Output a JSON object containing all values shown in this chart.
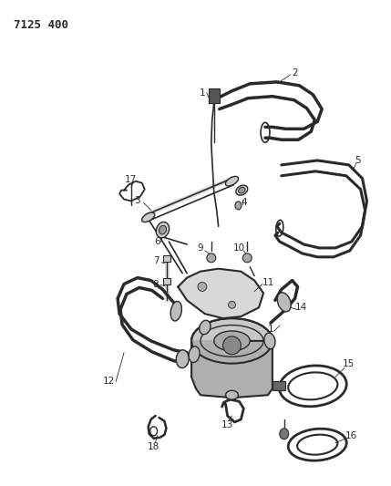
{
  "title": "7125 400",
  "bg_color": "#ffffff",
  "line_color": "#2a2a2a",
  "line_width": 1.0,
  "fig_width": 4.29,
  "fig_height": 5.33,
  "dpi": 100
}
